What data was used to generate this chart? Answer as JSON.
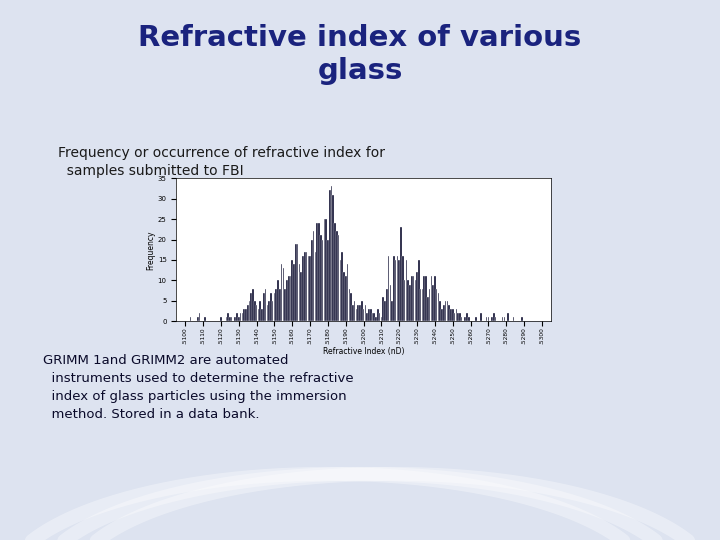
{
  "title": "Refractive index of various\nglass",
  "subtitle": "Frequency or occurrence of refractive index for\n  samples submitted to FBI",
  "bottom_text": "GRIMM 1and GRIMM2 are automated\n  instruments used to determine the refractive\n  index of glass particles using the immersion\n  method. Stored in a data bank.",
  "title_color": "#1a237e",
  "subtitle_color": "#1a1a1a",
  "bottom_text_color": "#0a0a2a",
  "xlabel": "Refractive Index (nD)",
  "ylabel": "Frequency",
  "bar_color": "#0d0d2e",
  "bar_edge_color": "#ffffff",
  "ylim_max": 35,
  "yticks": [
    0,
    5,
    10,
    15,
    20,
    25,
    30,
    35
  ],
  "histogram_data": [
    0,
    0,
    0,
    1,
    0,
    0,
    0,
    1,
    2,
    0,
    0,
    1,
    0,
    0,
    0,
    0,
    0,
    0,
    0,
    0,
    1,
    0,
    0,
    1,
    2,
    1,
    1,
    0,
    1,
    2,
    1,
    2,
    2,
    3,
    3,
    4,
    5,
    7,
    8,
    5,
    4,
    3,
    5,
    3,
    7,
    8,
    4,
    5,
    7,
    5,
    7,
    8,
    10,
    8,
    14,
    13,
    8,
    10,
    11,
    11,
    15,
    14,
    19,
    19,
    14,
    12,
    16,
    17,
    17,
    16,
    16,
    20,
    22,
    17,
    24,
    24,
    21,
    20,
    25,
    25,
    20,
    32,
    33,
    31,
    24,
    22,
    21,
    15,
    17,
    12,
    11,
    14,
    8,
    7,
    4,
    5,
    3,
    4,
    4,
    5,
    3,
    4,
    2,
    3,
    3,
    2,
    2,
    1,
    3,
    2,
    1,
    6,
    5,
    8,
    16,
    9,
    5,
    16,
    15,
    16,
    15,
    23,
    16,
    10,
    15,
    10,
    9,
    11,
    11,
    10,
    12,
    15,
    8,
    8,
    11,
    11,
    6,
    8,
    11,
    9,
    11,
    8,
    7,
    5,
    3,
    4,
    5,
    5,
    4,
    3,
    3,
    2,
    3,
    2,
    2,
    1,
    0,
    1,
    2,
    1,
    0,
    0,
    0,
    1,
    0,
    0,
    2,
    0,
    0,
    1,
    1,
    0,
    1,
    2,
    1,
    0,
    0,
    0,
    1,
    1,
    0,
    2,
    0,
    0,
    1,
    0,
    0,
    0,
    0,
    1,
    0,
    0,
    0,
    0,
    0,
    0,
    0,
    0,
    0,
    0,
    0
  ]
}
